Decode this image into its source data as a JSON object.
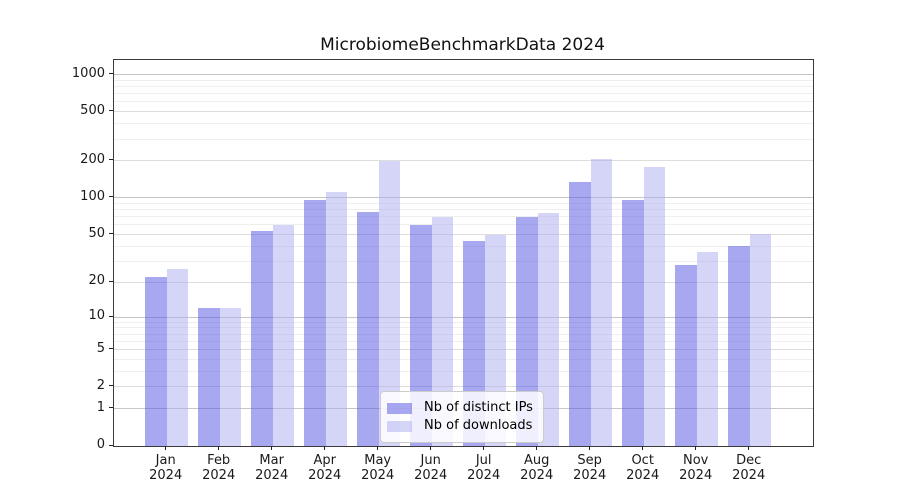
{
  "chart_data": {
    "type": "bar",
    "title": "MicrobiomeBenchmarkData 2024",
    "x_categories": [
      "Jan",
      "Feb",
      "Mar",
      "Apr",
      "May",
      "Jun",
      "Jul",
      "Aug",
      "Sep",
      "Oct",
      "Nov",
      "Dec"
    ],
    "x_year": "2024",
    "series": [
      {
        "name": "Nb of distinct IPs",
        "color": "rgba(82,82,226,0.5)",
        "values": [
          22,
          12,
          54,
          97,
          77,
          60,
          44,
          70,
          134,
          97,
          28,
          40
        ]
      },
      {
        "name": "Nb of downloads",
        "color": "rgba(171,171,239,0.5)",
        "values": [
          26,
          12,
          60,
          112,
          200,
          70,
          50,
          75,
          208,
          180,
          36,
          51
        ]
      }
    ],
    "y_scale": "log10(1+x)",
    "y_ticks": [
      0,
      1,
      2,
      5,
      10,
      20,
      50,
      100,
      200,
      500,
      1000
    ],
    "y_minor_gridlines": [
      3,
      4,
      6,
      7,
      8,
      9,
      30,
      40,
      60,
      70,
      80,
      90,
      300,
      400,
      600,
      700,
      800,
      900
    ],
    "ylim": [
      0,
      1300
    ],
    "grid": true,
    "legend_position": "lower center"
  },
  "colors": {
    "grid_power10": "#c6c6c6",
    "grid_labeled": "#dddddd",
    "grid_minor": "#efefef",
    "spine": "#3a3a3a",
    "tick": "#222222",
    "text": "#1a1a1a",
    "background": "#ffffff",
    "legend_border": "#cccccc"
  }
}
